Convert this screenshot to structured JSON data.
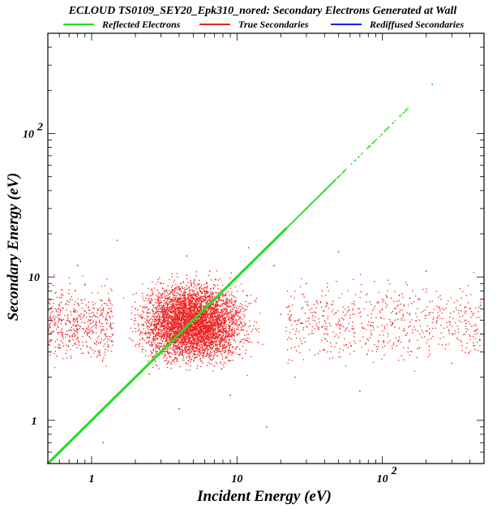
{
  "chart_data": {
    "type": "scatter",
    "title": "ECLOUD TS0109_SEY20_Epk310_nored: Secondary Electrons Generated at Wall",
    "xlabel": "Incident Energy (eV)",
    "ylabel": "Secondary Energy (eV)",
    "x_scale": "log",
    "y_scale": "log",
    "xlim": [
      0.5,
      500
    ],
    "ylim": [
      0.5,
      500
    ],
    "grid": false,
    "legend_position": "top",
    "x_ticks": [
      {
        "value": 1,
        "label": "1",
        "exp": ""
      },
      {
        "value": 10,
        "label": "10",
        "exp": ""
      },
      {
        "value": 100,
        "label": "10",
        "exp": "2"
      }
    ],
    "y_ticks": [
      {
        "value": 1,
        "label": "1",
        "exp": ""
      },
      {
        "value": 10,
        "label": "10",
        "exp": ""
      },
      {
        "value": 100,
        "label": "10",
        "exp": "2"
      }
    ],
    "series": [
      {
        "name": "Reflected Electrons",
        "color": "#22dd22",
        "description": "points lie on y = x",
        "points": [
          [
            0.5,
            0.5
          ],
          [
            0.7,
            0.7
          ],
          [
            1,
            1
          ],
          [
            1.5,
            1.5
          ],
          [
            2,
            2
          ],
          [
            3,
            3
          ],
          [
            5,
            5
          ],
          [
            7,
            7
          ],
          [
            10,
            10
          ],
          [
            15,
            15
          ],
          [
            20,
            20
          ],
          [
            30,
            30
          ],
          [
            40,
            40
          ],
          [
            55,
            55
          ],
          [
            80,
            80
          ],
          [
            110,
            110
          ],
          [
            140,
            140
          ],
          [
            220,
            220
          ]
        ]
      },
      {
        "name": "True Secondaries",
        "color": "#ee2222",
        "points": [
          [
            0.6,
            3.2
          ],
          [
            0.8,
            12
          ],
          [
            1.2,
            0.7
          ],
          [
            1.5,
            18
          ],
          [
            2,
            6
          ],
          [
            2.5,
            2.1
          ],
          [
            3,
            9
          ],
          [
            3.5,
            4.5
          ],
          [
            4,
            1.2
          ],
          [
            4.5,
            14
          ],
          [
            5,
            7
          ],
          [
            5.5,
            3
          ],
          [
            6,
            5
          ],
          [
            6.5,
            11
          ],
          [
            7,
            2.4
          ],
          [
            8,
            6.5
          ],
          [
            9,
            1.5
          ],
          [
            10,
            4
          ],
          [
            11,
            8
          ],
          [
            12,
            16
          ],
          [
            14,
            3.5
          ],
          [
            16,
            0.9
          ],
          [
            18,
            12
          ],
          [
            20,
            5.5
          ],
          [
            25,
            2
          ],
          [
            30,
            9
          ],
          [
            40,
            4
          ],
          [
            50,
            15
          ],
          [
            70,
            1.6
          ],
          [
            100,
            7
          ],
          [
            150,
            3
          ],
          [
            200,
            11
          ],
          [
            300,
            2.5
          ],
          [
            400,
            6
          ]
        ]
      },
      {
        "name": "Rediffused Secondaries",
        "color": "#1a1aee",
        "points": []
      }
    ]
  }
}
